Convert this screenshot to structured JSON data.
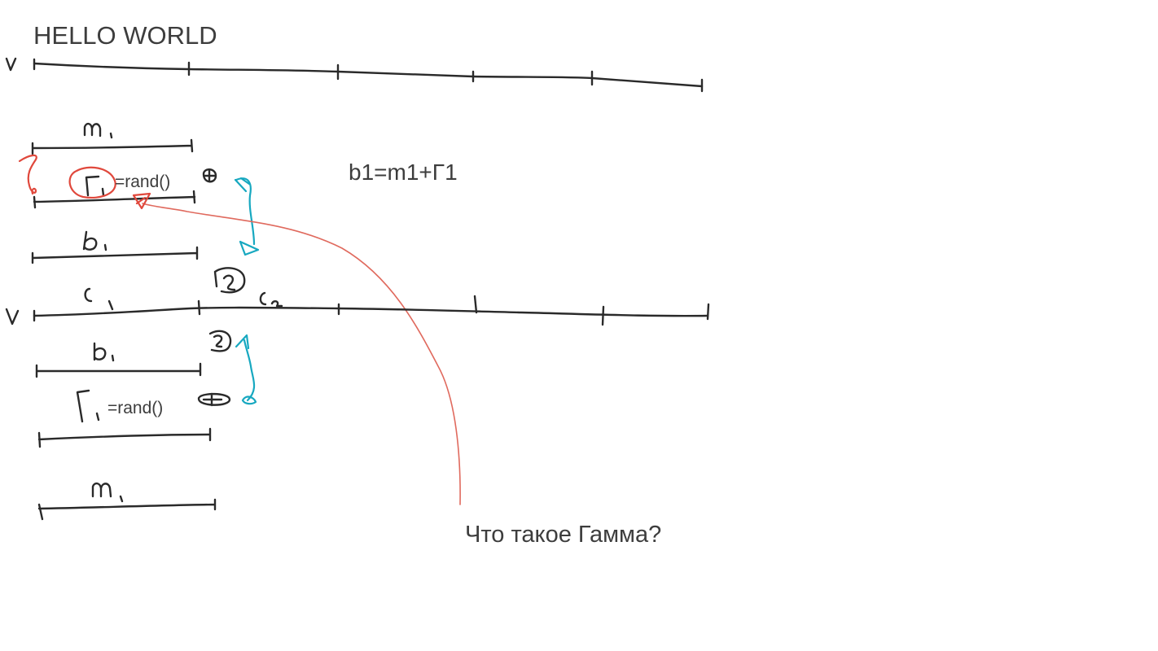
{
  "title": "HELLO WORLD",
  "formula": "b1=m1+Γ1",
  "rand_label_1": "=rand()",
  "rand_label_2": "=rand()",
  "question": "Что такое Гамма?",
  "colors": {
    "ink": "#2a2a2a",
    "text": "#3d3d3d",
    "red_annotation": "#e0483c",
    "cyan_annotation": "#17a8c0",
    "background": "#ffffff"
  }
}
